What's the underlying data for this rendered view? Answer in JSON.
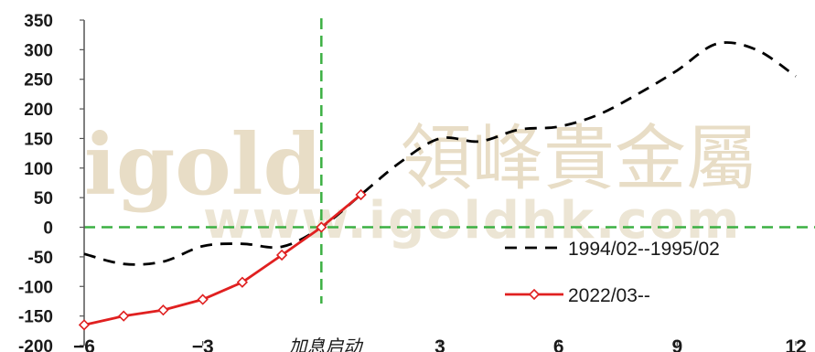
{
  "watermark": {
    "logo": "igold",
    "brand_cn": "領峰貴金屬",
    "url": "www.igoldhk.com"
  },
  "chart_data": {
    "type": "line",
    "xlim": [
      -6,
      12
    ],
    "ylim": [
      -200,
      350
    ],
    "x_ticks": [
      {
        "value": -6,
        "label": "−6"
      },
      {
        "value": -3,
        "label": "−3"
      },
      {
        "value": 0,
        "label": "加息启动"
      },
      {
        "value": 3,
        "label": "3"
      },
      {
        "value": 6,
        "label": "6"
      },
      {
        "value": 9,
        "label": "9"
      },
      {
        "value": 12,
        "label": "12"
      }
    ],
    "y_ticks": [
      350,
      300,
      250,
      200,
      150,
      100,
      50,
      0,
      -50,
      -100,
      -150,
      -200
    ],
    "reference_lines": {
      "x": 0,
      "y": 0,
      "color": "#3cb043"
    },
    "series": [
      {
        "name": "1994/02--1995/02",
        "style": "dashed",
        "color": "#000000",
        "x": [
          -6,
          -5,
          -4,
          -3,
          -2,
          -1,
          0,
          1,
          2,
          3,
          4,
          5,
          6,
          7,
          8,
          9,
          10,
          11,
          12
        ],
        "y": [
          -45,
          -62,
          -58,
          -32,
          -28,
          -33,
          0,
          55,
          110,
          150,
          145,
          165,
          170,
          190,
          225,
          265,
          310,
          300,
          255
        ]
      },
      {
        "name": "2022/03--",
        "style": "solid",
        "color": "#e02020",
        "marker": "diamond",
        "x": [
          -6,
          -5,
          -4,
          -3,
          -2,
          -1,
          0,
          1
        ],
        "y": [
          -165,
          -150,
          -140,
          -122,
          -93,
          -47,
          0,
          55
        ]
      }
    ]
  }
}
